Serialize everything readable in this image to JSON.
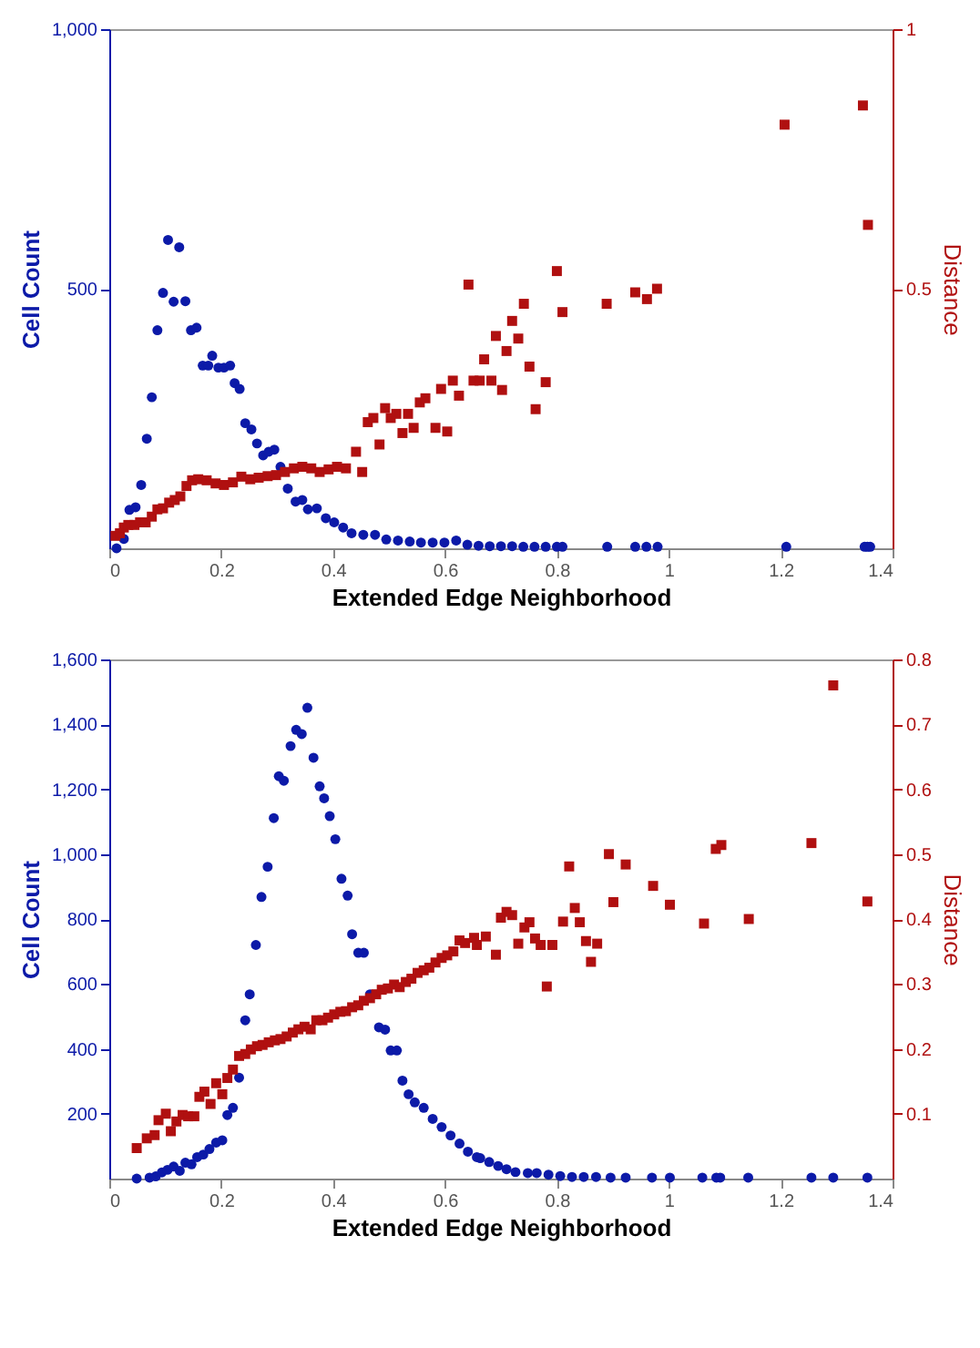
{
  "chart_data": [
    {
      "type": "scatter",
      "xlabel": "Extended Edge Neighborhood",
      "ylabel": "Cell Count",
      "y2label": "Distance",
      "grid": false,
      "xlim": [
        0,
        1.4
      ],
      "xticks": [
        0,
        0.2,
        0.4,
        0.6,
        0.8,
        1,
        1.2,
        1.4
      ],
      "ylim": [
        0,
        1000
      ],
      "yticks": [
        500,
        {
          "value": 1000,
          "label": "1,000"
        }
      ],
      "y2lim": [
        0,
        1
      ],
      "y2ticks": [
        0.5,
        1
      ],
      "series": [
        {
          "color": "#0c1aa8",
          "marker": "circle",
          "x": [
            0.013,
            0.026,
            0.036,
            0.047,
            0.057,
            0.067,
            0.076,
            0.086,
            0.096,
            0.105,
            0.115,
            0.125,
            0.136,
            0.146,
            0.156,
            0.167,
            0.177,
            0.184,
            0.195,
            0.205,
            0.216,
            0.224,
            0.233,
            0.243,
            0.254,
            0.264,
            0.275,
            0.285,
            0.295,
            0.306,
            0.319,
            0.333,
            0.345,
            0.355,
            0.371,
            0.387,
            0.402,
            0.418,
            0.433,
            0.454,
            0.475,
            0.495,
            0.516,
            0.537,
            0.557,
            0.578,
            0.599,
            0.62,
            0.64,
            0.66,
            0.68,
            0.7,
            0.72,
            0.74,
            0.76,
            0.78,
            0.8,
            0.81,
            0.89,
            0.94,
            0.96,
            0.98,
            1.21,
            1.35,
            1.355,
            1.36
          ],
          "values": [
            0,
            18,
            74,
            79,
            122,
            211,
            291,
            420,
            492,
            594,
            475,
            580,
            476,
            420,
            425,
            352,
            352,
            371,
            348,
            348,
            352,
            318,
            307,
            241,
            229,
            202,
            179,
            186,
            190,
            157,
            115,
            90,
            93,
            75,
            77,
            58,
            50,
            40,
            29,
            26,
            26,
            17,
            15,
            13,
            11,
            11,
            11,
            15,
            7,
            5,
            4,
            4,
            4,
            3,
            3,
            3,
            3,
            3,
            3,
            3,
            3,
            3,
            3,
            3,
            3,
            3
          ]
        },
        {
          "color": "#b01010",
          "marker": "square",
          "axis": "y2",
          "x": [
            0.011,
            0.019,
            0.026,
            0.034,
            0.045,
            0.055,
            0.065,
            0.076,
            0.086,
            0.096,
            0.107,
            0.117,
            0.127,
            0.138,
            0.148,
            0.159,
            0.174,
            0.19,
            0.205,
            0.221,
            0.236,
            0.252,
            0.267,
            0.283,
            0.298,
            0.314,
            0.33,
            0.345,
            0.361,
            0.376,
            0.392,
            0.407,
            0.423,
            0.441,
            0.452,
            0.462,
            0.472,
            0.483,
            0.493,
            0.503,
            0.513,
            0.524,
            0.534,
            0.544,
            0.555,
            0.565,
            0.583,
            0.593,
            0.604,
            0.614,
            0.625,
            0.642,
            0.651,
            0.662,
            0.67,
            0.683,
            0.691,
            0.702,
            0.71,
            0.72,
            0.731,
            0.741,
            0.751,
            0.762,
            0.78,
            0.8,
            0.81,
            0.889,
            0.94,
            0.961,
            0.979,
            1.207,
            1.347,
            1.356
          ],
          "values": [
            0.024,
            0.029,
            0.04,
            0.045,
            0.045,
            0.05,
            0.05,
            0.061,
            0.075,
            0.077,
            0.088,
            0.093,
            0.1,
            0.12,
            0.131,
            0.133,
            0.131,
            0.125,
            0.122,
            0.127,
            0.138,
            0.133,
            0.136,
            0.139,
            0.141,
            0.147,
            0.154,
            0.157,
            0.154,
            0.147,
            0.152,
            0.157,
            0.154,
            0.186,
            0.147,
            0.243,
            0.251,
            0.2,
            0.27,
            0.251,
            0.259,
            0.222,
            0.259,
            0.232,
            0.281,
            0.289,
            0.232,
            0.307,
            0.225,
            0.323,
            0.294,
            0.508,
            0.323,
            0.323,
            0.364,
            0.323,
            0.409,
            0.305,
            0.38,
            0.438,
            0.404,
            0.471,
            0.35,
            0.268,
            0.32,
            0.534,
            0.455,
            0.471,
            0.493,
            0.48,
            0.5,
            0.816,
            0.853,
            0.623
          ]
        }
      ]
    },
    {
      "type": "scatter",
      "xlabel": "Extended Edge Neighborhood",
      "ylabel": "Cell Count",
      "y2label": "Distance",
      "grid": false,
      "xlim": [
        0,
        1.4
      ],
      "xticks": [
        0,
        0.2,
        0.4,
        0.6,
        0.8,
        1,
        1.2,
        1.4
      ],
      "ylim": [
        0,
        1600
      ],
      "yticks": [
        200,
        400,
        600,
        800,
        {
          "value": 1000,
          "label": "1,000"
        },
        {
          "value": 1200,
          "label": "1,200"
        },
        {
          "value": 1400,
          "label": "1,400"
        },
        {
          "value": 1600,
          "label": "1,600"
        }
      ],
      "y2lim": [
        0,
        0.8
      ],
      "y2ticks": [
        0.1,
        0.2,
        0.3,
        0.4,
        0.5,
        0.6,
        0.7,
        0.8
      ],
      "series": [
        {
          "color": "#0c1aa8",
          "marker": "circle",
          "x": [
            0.049,
            0.072,
            0.083,
            0.094,
            0.104,
            0.115,
            0.126,
            0.136,
            0.147,
            0.157,
            0.168,
            0.179,
            0.191,
            0.202,
            0.211,
            0.221,
            0.232,
            0.243,
            0.251,
            0.262,
            0.272,
            0.283,
            0.294,
            0.303,
            0.312,
            0.324,
            0.334,
            0.344,
            0.354,
            0.365,
            0.376,
            0.384,
            0.394,
            0.404,
            0.415,
            0.426,
            0.434,
            0.445,
            0.455,
            0.466,
            0.482,
            0.493,
            0.503,
            0.514,
            0.524,
            0.535,
            0.546,
            0.562,
            0.578,
            0.594,
            0.61,
            0.626,
            0.641,
            0.657,
            0.663,
            0.679,
            0.695,
            0.71,
            0.726,
            0.748,
            0.764,
            0.785,
            0.806,
            0.827,
            0.848,
            0.87,
            0.896,
            0.923,
            0.97,
            1.002,
            1.06,
            1.085,
            1.092,
            1.142,
            1.255,
            1.294,
            1.355
          ],
          "values": [
            0,
            3,
            7,
            19,
            27,
            37,
            24,
            49,
            44,
            66,
            74,
            91,
            111,
            118,
            196,
            218,
            311,
            488,
            568,
            720,
            868,
            961,
            1111,
            1240,
            1226,
            1333,
            1383,
            1370,
            1451,
            1297,
            1209,
            1172,
            1117,
            1046,
            924,
            872,
            753,
            696,
            696,
            568,
            466,
            459,
            395,
            395,
            302,
            260,
            235,
            218,
            184,
            159,
            133,
            108,
            83,
            66,
            63,
            51,
            39,
            29,
            20,
            17,
            17,
            12,
            8,
            5,
            5,
            5,
            3,
            3,
            3,
            3,
            3,
            3,
            3,
            3,
            3,
            3,
            3
          ]
        },
        {
          "color": "#b01010",
          "marker": "square",
          "axis": "y2",
          "x": [
            0.049,
            0.067,
            0.081,
            0.088,
            0.101,
            0.11,
            0.12,
            0.131,
            0.141,
            0.152,
            0.161,
            0.17,
            0.181,
            0.191,
            0.202,
            0.211,
            0.221,
            0.232,
            0.243,
            0.253,
            0.264,
            0.274,
            0.285,
            0.296,
            0.306,
            0.317,
            0.328,
            0.338,
            0.349,
            0.36,
            0.37,
            0.381,
            0.391,
            0.402,
            0.413,
            0.423,
            0.434,
            0.445,
            0.455,
            0.466,
            0.477,
            0.487,
            0.498,
            0.509,
            0.519,
            0.53,
            0.54,
            0.551,
            0.562,
            0.572,
            0.583,
            0.594,
            0.604,
            0.615,
            0.626,
            0.636,
            0.652,
            0.657,
            0.673,
            0.691,
            0.7,
            0.71,
            0.72,
            0.731,
            0.742,
            0.751,
            0.761,
            0.771,
            0.782,
            0.792,
            0.811,
            0.822,
            0.832,
            0.841,
            0.852,
            0.861,
            0.872,
            0.893,
            0.901,
            0.923,
            0.972,
            1.002,
            1.063,
            1.084,
            1.094,
            1.143,
            1.255,
            1.294,
            1.355
          ],
          "values": [
            0.047,
            0.062,
            0.067,
            0.09,
            0.1,
            0.073,
            0.088,
            0.098,
            0.096,
            0.096,
            0.126,
            0.134,
            0.115,
            0.147,
            0.13,
            0.155,
            0.168,
            0.189,
            0.192,
            0.199,
            0.204,
            0.206,
            0.21,
            0.213,
            0.215,
            0.219,
            0.225,
            0.23,
            0.234,
            0.23,
            0.244,
            0.244,
            0.248,
            0.253,
            0.257,
            0.258,
            0.264,
            0.267,
            0.274,
            0.278,
            0.284,
            0.291,
            0.293,
            0.299,
            0.295,
            0.303,
            0.308,
            0.317,
            0.321,
            0.325,
            0.333,
            0.34,
            0.344,
            0.35,
            0.367,
            0.363,
            0.371,
            0.36,
            0.373,
            0.345,
            0.402,
            0.411,
            0.406,
            0.362,
            0.387,
            0.395,
            0.37,
            0.36,
            0.296,
            0.36,
            0.396,
            0.481,
            0.417,
            0.395,
            0.366,
            0.334,
            0.362,
            0.5,
            0.426,
            0.484,
            0.451,
            0.422,
            0.393,
            0.508,
            0.514,
            0.4,
            0.517,
            0.76,
            0.427
          ]
        }
      ]
    }
  ]
}
